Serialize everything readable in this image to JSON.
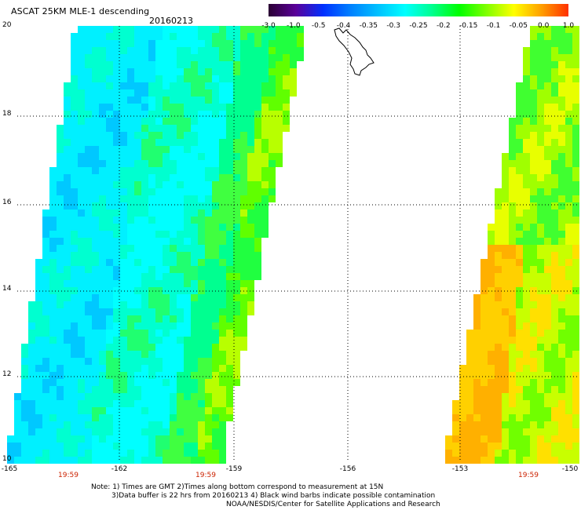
{
  "header": {
    "title": "ASCAT 25KM MLE-1 descending",
    "date": "20160213"
  },
  "colorbar": {
    "labels": [
      "-3.0",
      "-1.0",
      "-0.5",
      "-0.4",
      "-0.35",
      "-0.3",
      "-0.25",
      "-0.2",
      "-0.15",
      "-0.1",
      "-0.05",
      "0.0",
      "1.0"
    ],
    "colors": [
      "#2a0033",
      "#5a0099",
      "#0030ff",
      "#0080ff",
      "#00c0ff",
      "#00ffff",
      "#00ff90",
      "#00ff00",
      "#80ff00",
      "#ffff00",
      "#ffa000",
      "#ff3000"
    ]
  },
  "map": {
    "lat_labels": [
      "20",
      "18",
      "16",
      "14",
      "12",
      "10"
    ],
    "lon_labels": [
      "-165",
      "-162",
      "-159",
      "-156",
      "-153",
      "-150"
    ],
    "time_labels": [
      "19:59",
      "19:59",
      "19:59"
    ]
  },
  "notes": {
    "line1": "Note: 1) Times are GMT 2)Times along bottom correspond to measurement at 15N",
    "line2": "3)Data buffer is 22 hrs from 20160213 4) Black wind barbs indicate possible contamination",
    "line3": "NOAA/NESDIS/Center for Satellite Applications and Research"
  }
}
